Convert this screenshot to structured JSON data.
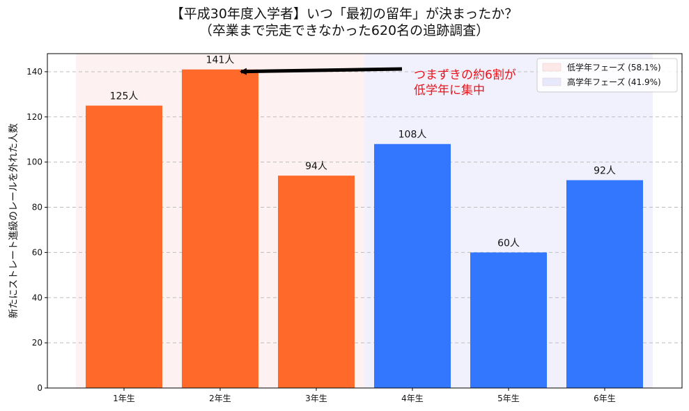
{
  "chart_data": {
    "type": "bar",
    "title_line1": "【平成30年度入学者】いつ「最初の留年」が決まったか？",
    "title_line2": "（卒業まで完走できなかった620名の追跡調査）",
    "ylabel": "新たにストレート進級のレールを外れた人数",
    "categories": [
      "1年生",
      "2年生",
      "3年生",
      "4年生",
      "5年生",
      "6年生"
    ],
    "values": [
      125,
      141,
      94,
      108,
      60,
      92
    ],
    "value_labels": [
      "125人",
      "141人",
      "94人",
      "108人",
      "60人",
      "92人"
    ],
    "bar_colors": [
      "#ff6a2b",
      "#ff6a2b",
      "#ff6a2b",
      "#3377ff",
      "#3377ff",
      "#3377ff"
    ],
    "ylim": [
      0,
      148
    ],
    "yticks": [
      0,
      20,
      40,
      60,
      80,
      100,
      120,
      140
    ],
    "grid": true,
    "phases": [
      {
        "name": "低学年フェーズ (58.1%)",
        "from_category": 0,
        "to_category": 2,
        "color": "#fde8e8"
      },
      {
        "name": "高学年フェーズ (41.9%)",
        "from_category": 3,
        "to_category": 5,
        "color": "#e8e8fd"
      }
    ],
    "legend_position": "top-right",
    "annotation": {
      "lines": [
        "つまずきの約6割が",
        "低学年に集中"
      ],
      "target_category": 1,
      "target_value": 141,
      "color": "#e8141b"
    }
  }
}
